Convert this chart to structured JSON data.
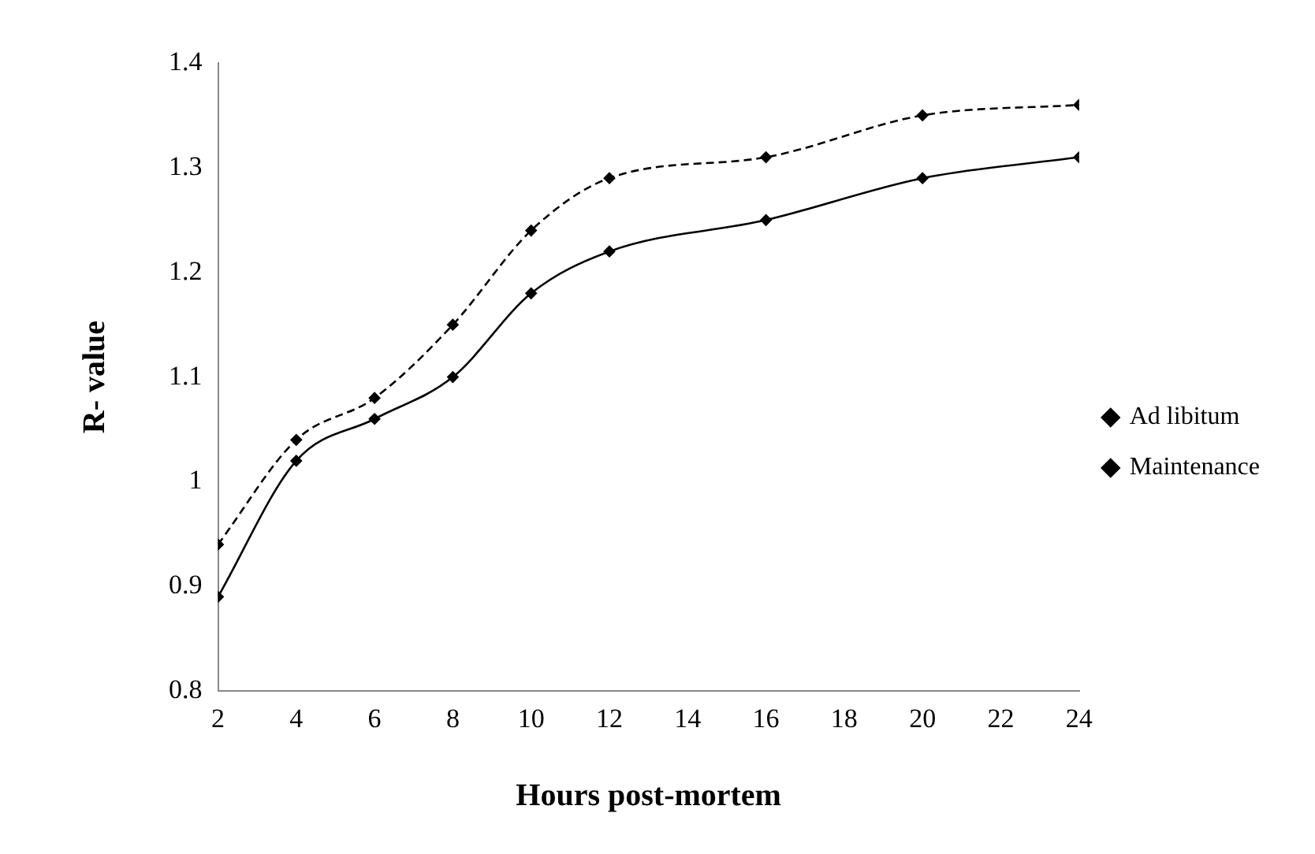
{
  "chart_data": {
    "type": "line",
    "xlabel": "Hours post-mortem",
    "ylabel": "R- value",
    "x": [
      2,
      4,
      6,
      8,
      10,
      12,
      16,
      20,
      24
    ],
    "series": [
      {
        "name": "Ad libitum",
        "color": "#000000",
        "values": [
          0.89,
          1.02,
          1.06,
          1.1,
          1.18,
          1.22,
          1.25,
          1.29,
          1.31
        ],
        "line_style": "solid"
      },
      {
        "name": "Maintenance",
        "color": "#000000",
        "values": [
          0.94,
          1.04,
          1.08,
          1.15,
          1.24,
          1.29,
          1.31,
          1.35,
          1.36
        ],
        "line_style": "dashed"
      }
    ],
    "xlim": [
      2,
      24
    ],
    "xticks": [
      2,
      4,
      6,
      8,
      10,
      12,
      14,
      16,
      18,
      20,
      22,
      24
    ],
    "ylim": [
      0.8,
      1.4
    ],
    "yticks": [
      0.8,
      0.9,
      1,
      1.1,
      1.2,
      1.3,
      1.4
    ],
    "grid": false,
    "legend": "right",
    "marker": "diamond"
  }
}
